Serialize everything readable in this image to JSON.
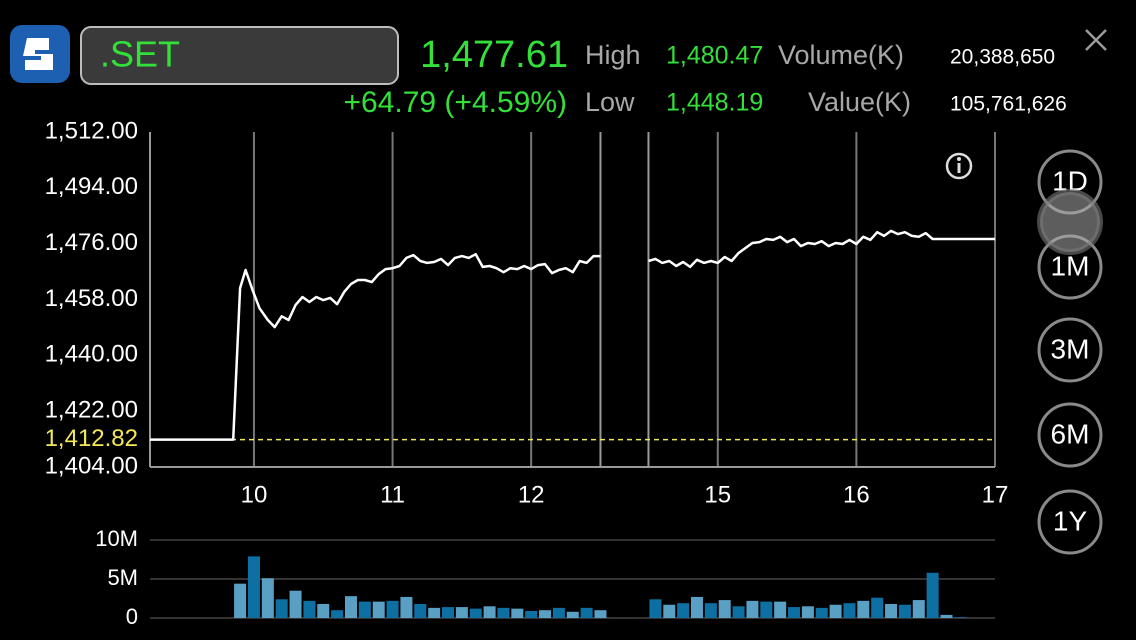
{
  "header": {
    "symbol": ".SET",
    "last": "1,477.61",
    "change": "+64.79 (+4.59%)",
    "high_label": "High",
    "high": "1,480.47",
    "volume_label": "Volume(K)",
    "volume": "20,388,650",
    "low_label": "Low",
    "low": "1,448.19",
    "value_label": "Value(K)",
    "value": "105,761,626"
  },
  "periods": [
    "1D",
    "1M",
    "3M",
    "6M",
    "1Y"
  ],
  "chart_data": [
    {
      "type": "line",
      "color": "#ffffff",
      "x": [
        9.25,
        9.85,
        9.9,
        9.94,
        9.99,
        10.04,
        10.1,
        10.15,
        10.2,
        10.25,
        10.3,
        10.35,
        10.4,
        10.45,
        10.5,
        10.55,
        10.6,
        10.65,
        10.7,
        10.75,
        10.8,
        10.85,
        10.9,
        10.95,
        11.0,
        11.05,
        11.1,
        11.15,
        11.2,
        11.25,
        11.3,
        11.35,
        11.4,
        11.45,
        11.5,
        11.55,
        11.6,
        11.65,
        11.7,
        11.75,
        11.8,
        11.85,
        11.9,
        11.95,
        12.0,
        12.05,
        12.1,
        12.15,
        12.2,
        12.25,
        12.3,
        12.35,
        12.4,
        12.45,
        12.5,
        14.5,
        14.55,
        14.6,
        14.65,
        14.7,
        14.75,
        14.8,
        14.85,
        14.9,
        14.95,
        15.0,
        15.05,
        15.1,
        15.15,
        15.2,
        15.25,
        15.3,
        15.35,
        15.4,
        15.45,
        15.5,
        15.55,
        15.6,
        15.65,
        15.7,
        15.75,
        15.8,
        15.85,
        15.9,
        15.95,
        16.0,
        16.05,
        16.1,
        16.15,
        16.2,
        16.25,
        16.3,
        16.35,
        16.4,
        16.45,
        16.5,
        16.55,
        17.0
      ],
      "values": [
        1412.82,
        1412.82,
        1461.7,
        1467.5,
        1461.0,
        1455.2,
        1451.4,
        1449.1,
        1452.6,
        1451.4,
        1456.2,
        1458.8,
        1457.2,
        1458.8,
        1457.8,
        1458.5,
        1456.5,
        1460.4,
        1463.0,
        1464.3,
        1464.3,
        1463.6,
        1466.2,
        1467.8,
        1468.1,
        1468.8,
        1471.4,
        1472.3,
        1470.4,
        1469.8,
        1470.1,
        1471.1,
        1469.1,
        1471.4,
        1472.0,
        1471.4,
        1472.6,
        1468.5,
        1468.8,
        1468.1,
        1466.8,
        1468.1,
        1467.8,
        1468.8,
        1467.8,
        1469.1,
        1469.4,
        1466.5,
        1467.5,
        1468.1,
        1466.8,
        1470.4,
        1469.8,
        1472.0,
        1472.0,
        1470.4,
        1471.1,
        1469.8,
        1470.4,
        1468.8,
        1470.1,
        1468.5,
        1470.8,
        1469.8,
        1470.4,
        1469.8,
        1471.7,
        1470.4,
        1473.0,
        1474.6,
        1476.2,
        1476.5,
        1477.5,
        1477.2,
        1478.2,
        1476.5,
        1477.5,
        1475.2,
        1476.2,
        1475.9,
        1476.8,
        1475.2,
        1476.2,
        1475.9,
        1477.2,
        1475.9,
        1478.2,
        1477.2,
        1479.7,
        1478.5,
        1480.1,
        1479.1,
        1479.7,
        1478.5,
        1478.2,
        1479.4,
        1477.5,
        1477.5
      ],
      "xlim": [
        9.25,
        17
      ],
      "xbreak": [
        12.5,
        14.5
      ],
      "xticks": [
        10,
        11,
        12,
        15,
        16,
        17
      ],
      "ylim": [
        1404,
        1512
      ],
      "yticks": [
        {
          "value": 1404,
          "label": "1,404.00"
        },
        {
          "value": 1422,
          "label": "1,422.00"
        },
        {
          "value": 1440,
          "label": "1,440.00"
        },
        {
          "value": 1458,
          "label": "1,458.00"
        },
        {
          "value": 1476,
          "label": "1,476.00"
        },
        {
          "value": 1494,
          "label": "1,494.00"
        },
        {
          "value": 1512,
          "label": "1,512.00"
        }
      ],
      "ref_line": {
        "value": 1412.82,
        "label": "1,412.82",
        "color": "#f2e85a"
      },
      "grid": "x"
    },
    {
      "type": "bar",
      "colors": [
        "#5a9fc4",
        "#0e6fa3"
      ],
      "x": [
        9.9,
        10.0,
        10.1,
        10.2,
        10.3,
        10.4,
        10.5,
        10.6,
        10.7,
        10.8,
        10.9,
        11.0,
        11.1,
        11.2,
        11.3,
        11.4,
        11.5,
        11.6,
        11.7,
        11.8,
        11.9,
        12.0,
        12.1,
        12.2,
        12.3,
        12.4,
        12.5,
        14.55,
        14.65,
        14.75,
        14.85,
        14.95,
        15.05,
        15.15,
        15.25,
        15.35,
        15.45,
        15.55,
        15.65,
        15.75,
        15.85,
        15.95,
        16.05,
        16.15,
        16.25,
        16.35,
        16.45,
        16.55,
        16.65,
        16.75
      ],
      "values": [
        4.4,
        7.9,
        5.1,
        2.4,
        3.5,
        2.2,
        1.8,
        1.0,
        2.8,
        2.1,
        2.1,
        2.2,
        2.7,
        1.8,
        1.3,
        1.4,
        1.4,
        1.2,
        1.5,
        1.3,
        1.2,
        0.9,
        1.0,
        1.3,
        0.8,
        1.3,
        1.0,
        2.4,
        1.7,
        1.9,
        2.7,
        1.9,
        2.3,
        1.5,
        2.2,
        2.1,
        2.1,
        1.4,
        1.5,
        1.3,
        1.7,
        1.9,
        2.2,
        2.6,
        1.8,
        1.7,
        2.3,
        5.8,
        0.4,
        0.1
      ],
      "xlim": [
        9.25,
        17
      ],
      "xbreak": [
        12.5,
        14.5
      ],
      "ylim": [
        0,
        10
      ],
      "yticks": [
        {
          "value": 10,
          "label": "10M"
        },
        {
          "value": 5,
          "label": "5M"
        },
        0
      ],
      "grid": "y"
    }
  ]
}
